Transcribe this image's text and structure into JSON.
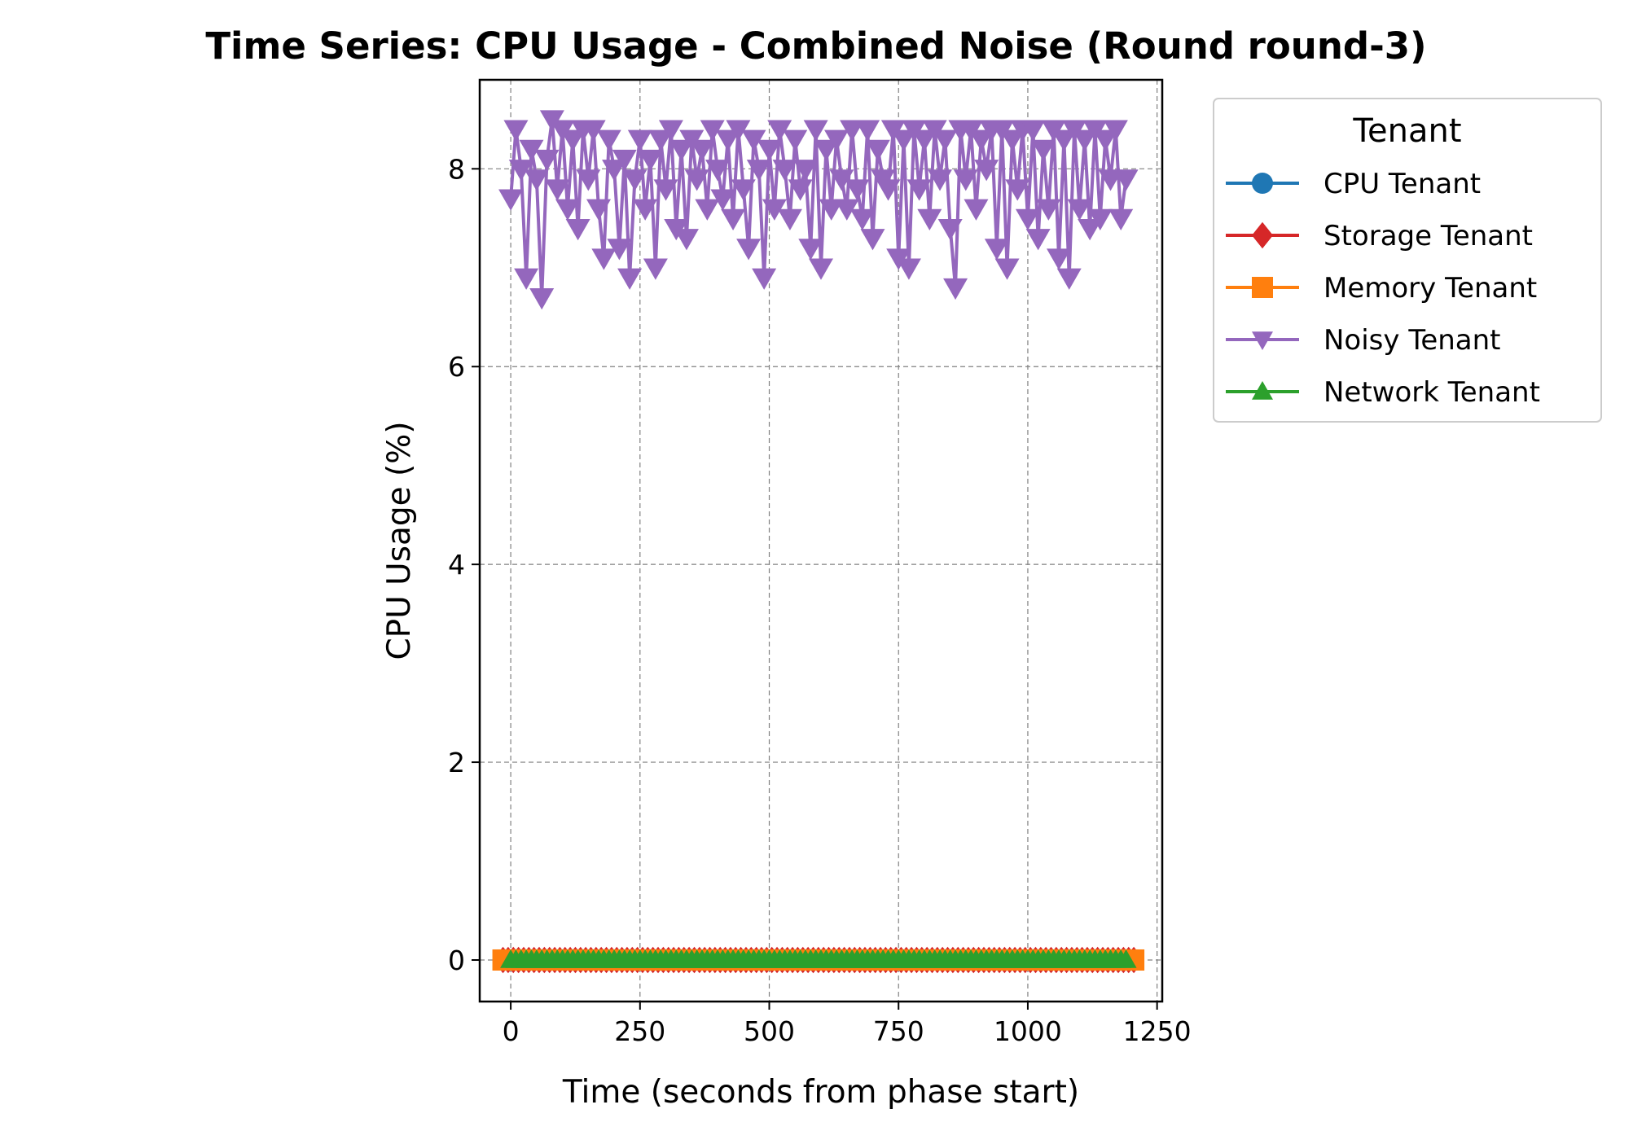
{
  "chart_data": {
    "type": "line",
    "title": "Time Series: CPU Usage - Combined Noise (Round round-3)",
    "xlabel": "Time (seconds from phase start)",
    "ylabel": "CPU Usage (%)",
    "xlim": [
      -60,
      1260
    ],
    "ylim": [
      -0.42,
      8.9
    ],
    "xticks": [
      0,
      250,
      500,
      750,
      1000,
      1250
    ],
    "yticks": [
      0,
      2,
      4,
      6,
      8
    ],
    "grid": true,
    "legend": {
      "title": "Tenant",
      "placement": "outside-top-right"
    },
    "series": [
      {
        "name": "CPU Tenant",
        "color": "#1f77b4",
        "marker": "circle",
        "x_range": [
          0,
          1195
        ],
        "values_note": "",
        "y": [
          0,
          0
        ]
      },
      {
        "name": "Storage Tenant",
        "color": "#d62728",
        "marker": "diamond",
        "x_range": [
          -15,
          1205
        ],
        "y": [
          0,
          0
        ]
      },
      {
        "name": "Memory Tenant",
        "color": "#ff7f0e",
        "marker": "square",
        "x_range": [
          -15,
          1205
        ],
        "y": [
          0,
          0
        ]
      },
      {
        "name": "Noisy Tenant",
        "color": "#9467bd",
        "marker": "triangle-down",
        "x": [
          0,
          10,
          20,
          30,
          40,
          50,
          60,
          70,
          80,
          90,
          100,
          110,
          120,
          130,
          140,
          150,
          160,
          170,
          180,
          190,
          200,
          210,
          220,
          230,
          240,
          250,
          260,
          270,
          280,
          290,
          300,
          310,
          320,
          330,
          340,
          350,
          360,
          370,
          380,
          390,
          400,
          410,
          420,
          430,
          440,
          450,
          460,
          470,
          480,
          490,
          500,
          510,
          520,
          530,
          540,
          550,
          560,
          570,
          580,
          590,
          600,
          610,
          620,
          630,
          640,
          650,
          660,
          670,
          680,
          690,
          700,
          710,
          720,
          730,
          740,
          750,
          760,
          770,
          780,
          790,
          800,
          810,
          820,
          830,
          840,
          850,
          860,
          870,
          880,
          890,
          900,
          910,
          920,
          930,
          940,
          950,
          960,
          970,
          980,
          990,
          1000,
          1010,
          1020,
          1030,
          1040,
          1050,
          1060,
          1070,
          1080,
          1090,
          1100,
          1110,
          1120,
          1130,
          1140,
          1150,
          1160,
          1170,
          1180,
          1190
        ],
        "y": [
          7.7,
          8.4,
          8.0,
          6.9,
          8.2,
          7.9,
          6.7,
          8.1,
          8.5,
          7.8,
          8.4,
          7.6,
          8.3,
          7.4,
          8.4,
          7.9,
          8.4,
          7.6,
          7.1,
          8.3,
          8.0,
          7.2,
          8.1,
          6.9,
          7.9,
          8.3,
          7.6,
          8.1,
          7.0,
          8.3,
          7.8,
          8.4,
          7.4,
          8.2,
          7.3,
          8.3,
          7.9,
          8.2,
          7.6,
          8.4,
          8.0,
          7.7,
          8.3,
          7.5,
          8.4,
          7.8,
          7.2,
          8.3,
          8.0,
          6.9,
          8.2,
          7.6,
          8.4,
          8.0,
          7.5,
          8.3,
          7.8,
          8.0,
          7.2,
          8.4,
          7.0,
          8.2,
          7.6,
          8.3,
          7.9,
          7.6,
          8.4,
          7.8,
          7.5,
          8.4,
          7.3,
          8.2,
          7.9,
          7.8,
          8.4,
          7.1,
          8.3,
          7.0,
          8.4,
          7.8,
          8.3,
          7.5,
          8.4,
          7.9,
          8.3,
          7.4,
          6.8,
          8.4,
          7.9,
          8.4,
          7.6,
          8.3,
          8.0,
          8.4,
          7.2,
          8.4,
          7.0,
          8.3,
          7.8,
          8.4,
          7.5,
          8.4,
          7.3,
          8.2,
          7.6,
          8.4,
          7.1,
          8.3,
          6.9,
          8.4,
          7.6,
          8.3,
          7.4,
          8.4,
          7.5,
          8.3,
          7.9,
          8.4,
          7.5,
          7.9
        ]
      },
      {
        "name": "Network Tenant",
        "color": "#2ca02c",
        "marker": "triangle-up",
        "x_range": [
          0,
          1195
        ],
        "y": [
          0,
          0
        ]
      }
    ]
  }
}
